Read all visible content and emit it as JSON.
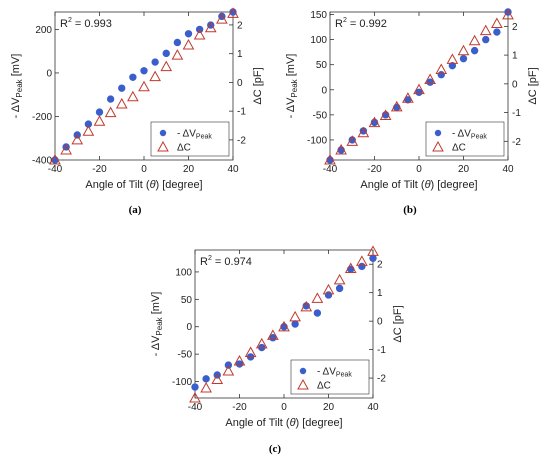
{
  "chart_data": [
    {
      "type": "scatter",
      "panel_label": "(a)",
      "r2_label": "R",
      "r2_value": " = 0.993",
      "xlabel": "Angle of Tilt (",
      "xlabel_symbol": "θ",
      "xlabel_end": ") [degree]",
      "ylabel_left": "- ΔV",
      "ylabel_left_sub": "Peak",
      "ylabel_left_unit": " [mV]",
      "ylabel_right": "ΔC [pF]",
      "xlim": [
        -40,
        40
      ],
      "ylim_left": [
        -400,
        280
      ],
      "ylim_right": [
        -2.7,
        2.45
      ],
      "xticks": [
        -40,
        -20,
        0,
        20,
        40
      ],
      "yticks_left": [
        -400,
        -200,
        0,
        200
      ],
      "yticks_right": [
        -2,
        -1,
        0,
        1,
        2
      ],
      "legend_position": "lower-right",
      "series": [
        {
          "name": "- ΔV",
          "name_sub": "Peak",
          "axis": "left",
          "marker": "circle",
          "color": "#3a5fcd",
          "x": [
            -40,
            -35,
            -30,
            -25,
            -20,
            -15,
            -10,
            -5,
            0,
            5,
            10,
            15,
            20,
            25,
            30,
            35,
            40
          ],
          "y": [
            -400,
            -340,
            -285,
            -235,
            -180,
            -120,
            -70,
            -20,
            10,
            50,
            90,
            140,
            180,
            200,
            220,
            260,
            280
          ]
        },
        {
          "name": "ΔC",
          "axis": "right",
          "marker": "triangle",
          "color": "#c0392b",
          "x": [
            -40,
            -35,
            -30,
            -25,
            -20,
            -15,
            -10,
            -5,
            0,
            5,
            10,
            15,
            20,
            25,
            30,
            35,
            40
          ],
          "y": [
            -2.7,
            -2.35,
            -2.0,
            -1.7,
            -1.35,
            -1.05,
            -0.75,
            -0.5,
            -0.15,
            0.2,
            0.55,
            0.95,
            1.3,
            1.65,
            1.9,
            2.2,
            2.4
          ]
        }
      ]
    },
    {
      "type": "scatter",
      "panel_label": "(b)",
      "r2_label": "R",
      "r2_value": " = 0.992",
      "xlabel": "Angle of Tilt (",
      "xlabel_symbol": "θ",
      "xlabel_end": ") [degree]",
      "ylabel_left": "- ΔV",
      "ylabel_left_sub": "Peak",
      "ylabel_left_unit": " [mV]",
      "ylabel_right": "ΔC [pF]",
      "xlim": [
        -40,
        40
      ],
      "ylim_left": [
        -140,
        155
      ],
      "ylim_right": [
        -2.65,
        2.5
      ],
      "xticks": [
        -40,
        -20,
        0,
        20,
        40
      ],
      "yticks_left": [
        -100,
        -50,
        0,
        50,
        100,
        150
      ],
      "yticks_right": [
        -2,
        -1,
        0,
        1,
        2
      ],
      "legend_position": "lower-right",
      "series": [
        {
          "name": "- ΔV",
          "name_sub": "Peak",
          "axis": "left",
          "marker": "circle",
          "color": "#3a5fcd",
          "x": [
            -40,
            -35,
            -30,
            -25,
            -20,
            -15,
            -10,
            -5,
            0,
            5,
            10,
            15,
            20,
            25,
            30,
            35,
            40
          ],
          "y": [
            -140,
            -120,
            -100,
            -82,
            -65,
            -50,
            -35,
            -20,
            -5,
            15,
            30,
            48,
            62,
            78,
            100,
            115,
            155
          ]
        },
        {
          "name": "ΔC",
          "axis": "right",
          "marker": "triangle",
          "color": "#c0392b",
          "x": [
            -40,
            -35,
            -30,
            -25,
            -20,
            -15,
            -10,
            -5,
            0,
            5,
            10,
            15,
            20,
            25,
            30,
            35,
            40
          ],
          "y": [
            -2.65,
            -2.3,
            -2.0,
            -1.7,
            -1.35,
            -1.1,
            -0.8,
            -0.5,
            -0.2,
            0.15,
            0.5,
            0.85,
            1.15,
            1.5,
            1.85,
            2.1,
            2.4
          ]
        }
      ]
    },
    {
      "type": "scatter",
      "panel_label": "(c)",
      "r2_label": "R",
      "r2_value": " = 0.974",
      "xlabel": "Angle of Tilt (",
      "xlabel_symbol": "θ",
      "xlabel_end": ") [degree]",
      "ylabel_left": "- ΔV",
      "ylabel_left_sub": "Peak",
      "ylabel_left_unit": " [mV]",
      "ylabel_right": "ΔC [pF]",
      "xlim": [
        -40,
        40
      ],
      "ylim_left": [
        -130,
        140
      ],
      "ylim_right": [
        -2.7,
        2.5
      ],
      "xticks": [
        -40,
        -20,
        0,
        20,
        40
      ],
      "yticks_left": [
        -100,
        -50,
        0,
        50,
        100
      ],
      "yticks_right": [
        -2,
        -1,
        0,
        1,
        2
      ],
      "legend_position": "lower-right",
      "series": [
        {
          "name": "- ΔV",
          "name_sub": "Peak",
          "axis": "left",
          "marker": "circle",
          "color": "#3a5fcd",
          "x": [
            -40,
            -35,
            -30,
            -25,
            -20,
            -15,
            -10,
            -5,
            0,
            5,
            10,
            15,
            20,
            25,
            30,
            35,
            40
          ],
          "y": [
            -110,
            -95,
            -88,
            -70,
            -68,
            -55,
            -38,
            -20,
            0,
            5,
            38,
            25,
            58,
            70,
            105,
            110,
            125
          ]
        },
        {
          "name": "ΔC",
          "axis": "right",
          "marker": "triangle",
          "color": "#c0392b",
          "x": [
            -40,
            -35,
            -30,
            -25,
            -20,
            -15,
            -10,
            -5,
            0,
            5,
            10,
            15,
            20,
            25,
            30,
            35,
            40
          ],
          "y": [
            -2.7,
            -2.35,
            -2.05,
            -1.75,
            -1.4,
            -1.1,
            -0.8,
            -0.5,
            -0.2,
            0.15,
            0.5,
            0.8,
            1.1,
            1.45,
            1.85,
            2.1,
            2.45
          ]
        }
      ]
    }
  ]
}
